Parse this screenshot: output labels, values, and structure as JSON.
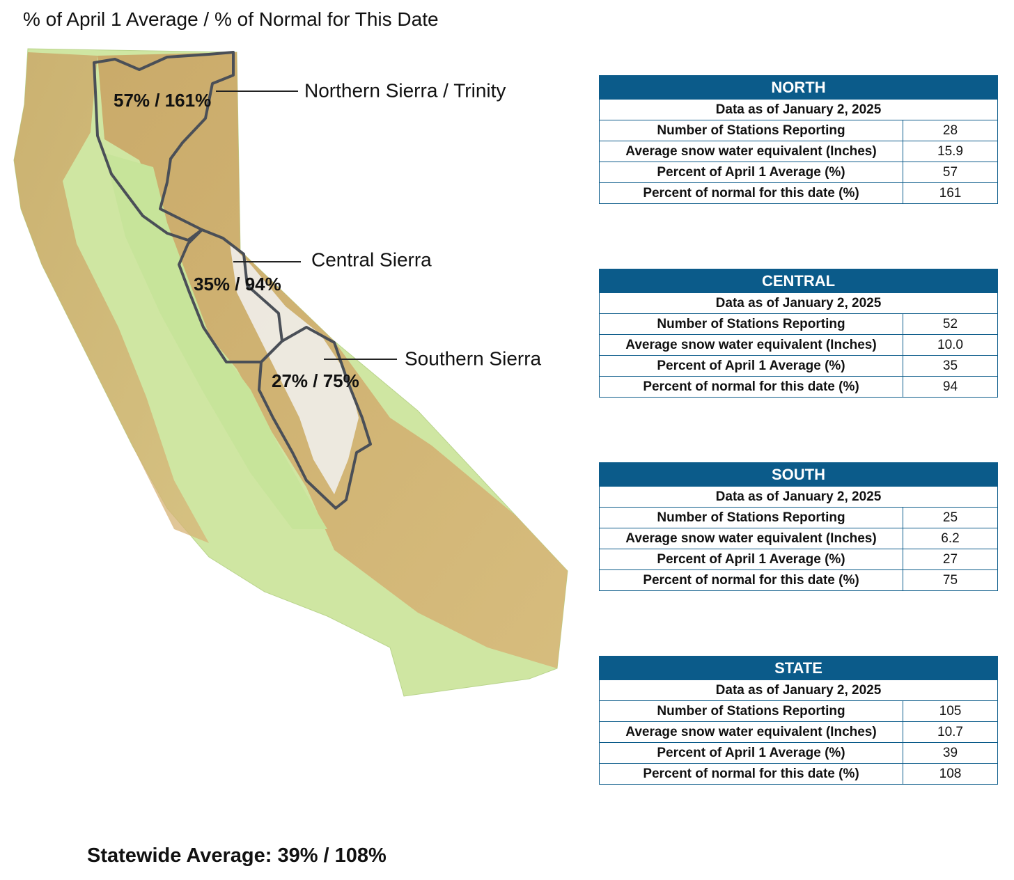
{
  "title": "% of April 1 Average / % of Normal for This Date",
  "regions": [
    {
      "name": "Northern Sierra / Trinity",
      "label": "57% / 161%"
    },
    {
      "name": "Central Sierra",
      "label": "35% / 94%"
    },
    {
      "name": "Southern Sierra",
      "label": "27% / 75%"
    }
  ],
  "tables": [
    {
      "title": "NORTH",
      "date": "Data as of January 2, 2025",
      "rows": [
        [
          "Number of Stations Reporting",
          "28"
        ],
        [
          "Average snow water equivalent (Inches)",
          "15.9"
        ],
        [
          "Percent of April 1 Average (%)",
          "57"
        ],
        [
          "Percent of normal for this date (%)",
          "161"
        ]
      ]
    },
    {
      "title": "CENTRAL",
      "date": "Data as of January 2, 2025",
      "rows": [
        [
          "Number of Stations Reporting",
          "52"
        ],
        [
          "Average snow water equivalent (Inches)",
          "10.0"
        ],
        [
          "Percent of April 1 Average (%)",
          "35"
        ],
        [
          "Percent of normal for this date (%)",
          "94"
        ]
      ]
    },
    {
      "title": "SOUTH",
      "date": "Data as of January 2, 2025",
      "rows": [
        [
          "Number of Stations Reporting",
          "25"
        ],
        [
          "Average snow water equivalent (Inches)",
          "6.2"
        ],
        [
          "Percent of April 1 Average (%)",
          "27"
        ],
        [
          "Percent of normal for this date (%)",
          "75"
        ]
      ]
    },
    {
      "title": "STATE",
      "date": "Data as of January 2, 2025",
      "rows": [
        [
          "Number of Stations Reporting",
          "105"
        ],
        [
          "Average snow water equivalent (Inches)",
          "10.7"
        ],
        [
          "Percent of April 1 Average (%)",
          "39"
        ],
        [
          "Percent of normal for this date (%)",
          "108"
        ]
      ]
    }
  ],
  "footer": "Statewide Average: 39% / 108%"
}
